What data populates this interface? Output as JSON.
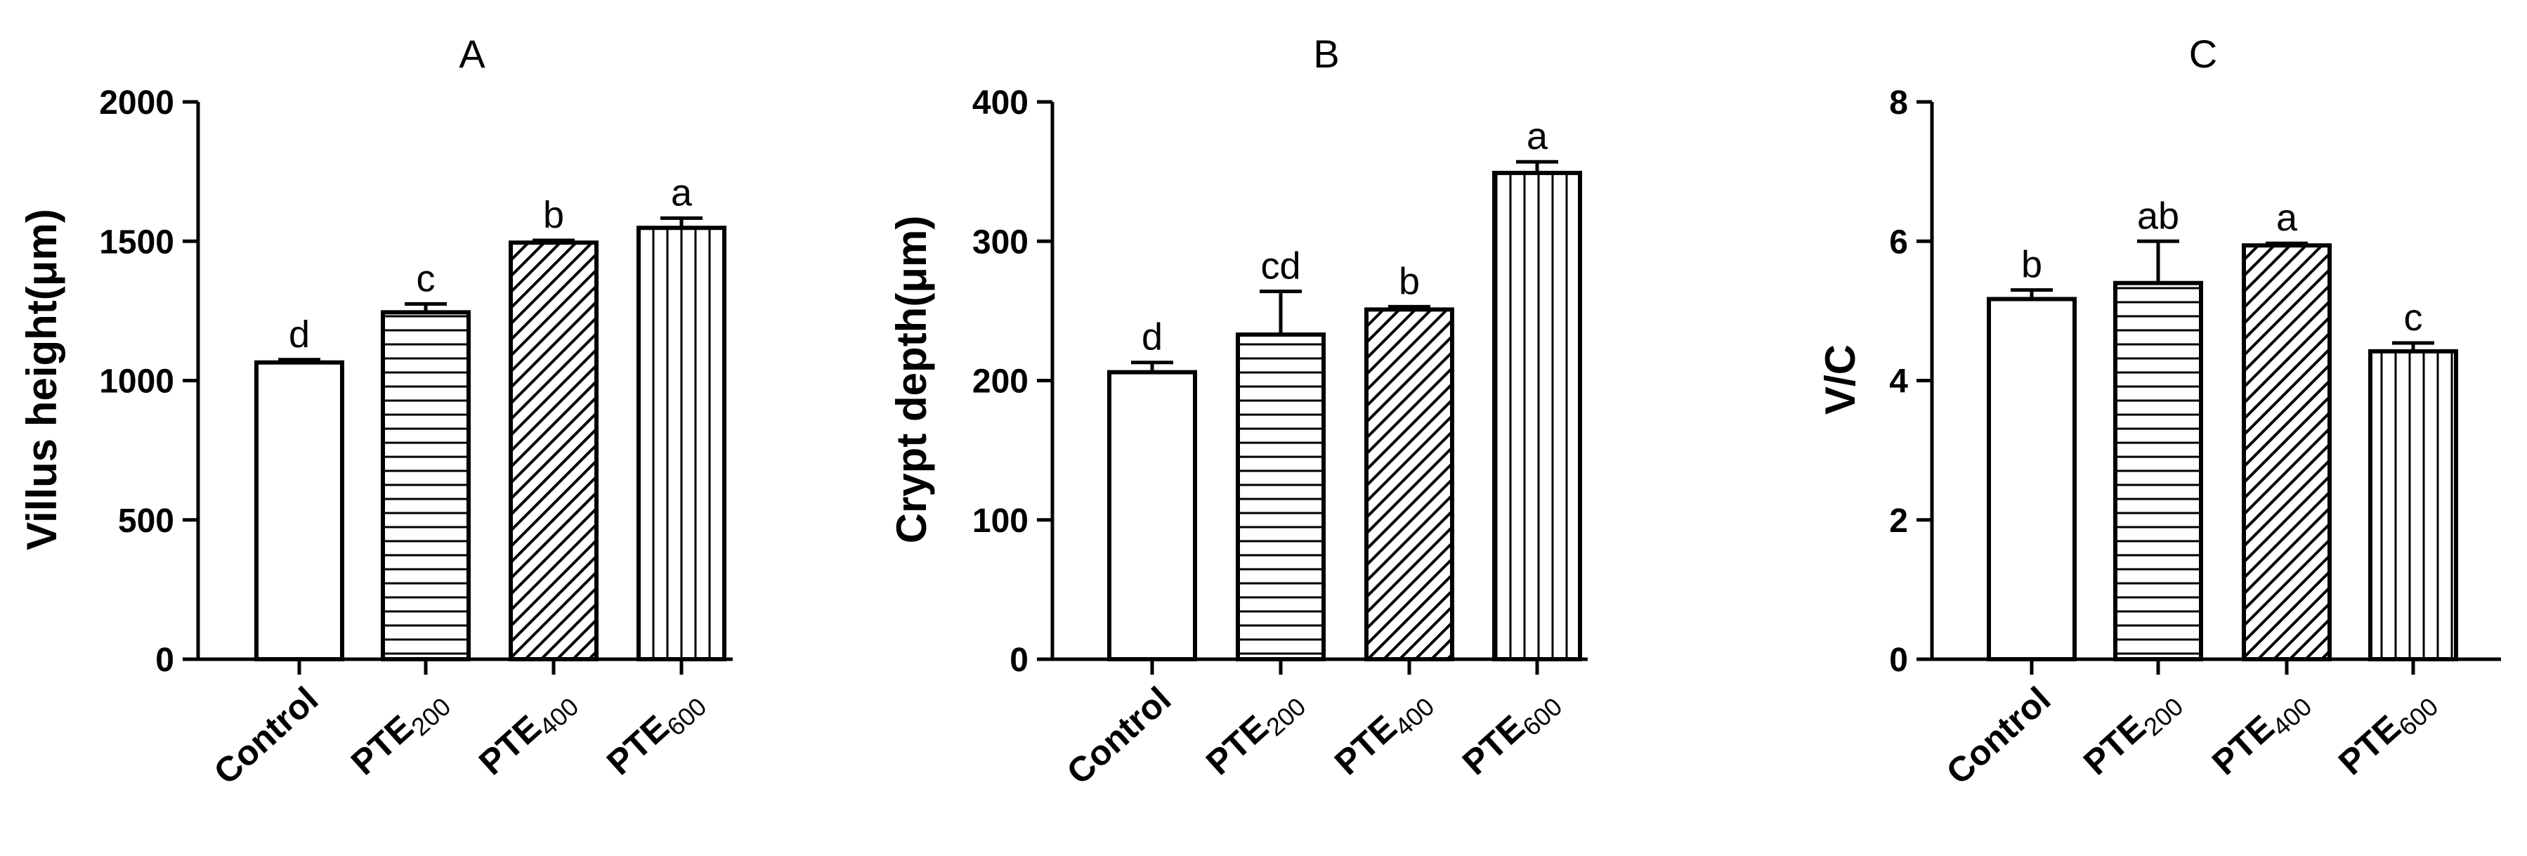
{
  "chart_data": [
    {
      "type": "bar",
      "title": "A",
      "ylabel": "Villus height(μm)",
      "ylim": [
        0,
        2000
      ],
      "yticks": [
        0,
        500,
        1000,
        1500,
        2000
      ],
      "categories": [
        {
          "main": "Control",
          "sub": ""
        },
        {
          "main": "PTE",
          "sub": "200"
        },
        {
          "main": "PTE",
          "sub": "400"
        },
        {
          "main": "PTE",
          "sub": "600"
        }
      ],
      "values": [
        1065,
        1245,
        1495,
        1548
      ],
      "errors": [
        10,
        30,
        8,
        35
      ],
      "significance": [
        "d",
        "c",
        "b",
        "a"
      ],
      "patterns": [
        "none",
        "horizontal",
        "diagonal",
        "vertical"
      ]
    },
    {
      "type": "bar",
      "title": "B",
      "ylabel": "Crypt depth(μm)",
      "ylim": [
        0,
        400
      ],
      "yticks": [
        0,
        100,
        200,
        300,
        400
      ],
      "categories": [
        {
          "main": "Control",
          "sub": ""
        },
        {
          "main": "PTE",
          "sub": "200"
        },
        {
          "main": "PTE",
          "sub": "400"
        },
        {
          "main": "PTE",
          "sub": "600"
        }
      ],
      "values": [
        206,
        233,
        251,
        349
      ],
      "errors": [
        7,
        31,
        2,
        8
      ],
      "significance": [
        "d",
        "cd",
        "b",
        "a"
      ],
      "patterns": [
        "none",
        "horizontal",
        "diagonal",
        "vertical"
      ]
    },
    {
      "type": "bar",
      "title": "C",
      "ylabel": "V/C",
      "ylim": [
        0,
        8
      ],
      "yticks": [
        0,
        2,
        4,
        6,
        8
      ],
      "categories": [
        {
          "main": "Control",
          "sub": ""
        },
        {
          "main": "PTE",
          "sub": "200"
        },
        {
          "main": "PTE",
          "sub": "400"
        },
        {
          "main": "PTE",
          "sub": "600"
        }
      ],
      "values": [
        5.17,
        5.4,
        5.94,
        4.42
      ],
      "errors": [
        0.13,
        0.6,
        0.03,
        0.12
      ],
      "significance": [
        "b",
        "ab",
        "a",
        "c"
      ],
      "patterns": [
        "none",
        "horizontal",
        "diagonal",
        "vertical"
      ]
    }
  ]
}
